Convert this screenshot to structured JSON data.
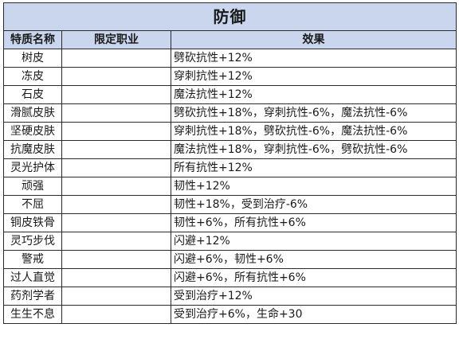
{
  "title": "防御",
  "columns": {
    "name": "特质名称",
    "class": "限定职业",
    "effect": "效果"
  },
  "rows": [
    {
      "name": "树皮",
      "class": "",
      "effect": "劈砍抗性+12%"
    },
    {
      "name": "冻皮",
      "class": "",
      "effect": "穿刺抗性+12%"
    },
    {
      "name": "石皮",
      "class": "",
      "effect": "魔法抗性+12%"
    },
    {
      "name": "滑腻皮肤",
      "class": "",
      "effect": "劈砍抗性+18%，穿刺抗性-6%，魔法抗性-6%"
    },
    {
      "name": "坚硬皮肤",
      "class": "",
      "effect": "穿刺抗性+18%，劈砍抗性-6%，魔法抗性-6%"
    },
    {
      "name": "抗魔皮肤",
      "class": "",
      "effect": "魔法抗性+18%，穿刺抗性-6%，劈砍抗性-6%"
    },
    {
      "name": "灵光护体",
      "class": "",
      "effect": "所有抗性+12%"
    },
    {
      "name": "顽强",
      "class": "",
      "effect": "韧性+12%"
    },
    {
      "name": "不屈",
      "class": "",
      "effect": "韧性+18%，受到治疗-6%"
    },
    {
      "name": "铜皮铁骨",
      "class": "",
      "effect": "韧性+6%，所有抗性+6%"
    },
    {
      "name": "灵巧步伐",
      "class": "",
      "effect": "闪避+12%"
    },
    {
      "name": "警戒",
      "class": "",
      "effect": "闪避+6%，韧性+6%"
    },
    {
      "name": "过人直觉",
      "class": "",
      "effect": "闪避+6%，所有抗性+6%"
    },
    {
      "name": "药剂学者",
      "class": "",
      "effect": "受到治疗+12%"
    },
    {
      "name": "生生不息",
      "class": "",
      "effect": "受到治疗+6%，生命+30"
    }
  ]
}
